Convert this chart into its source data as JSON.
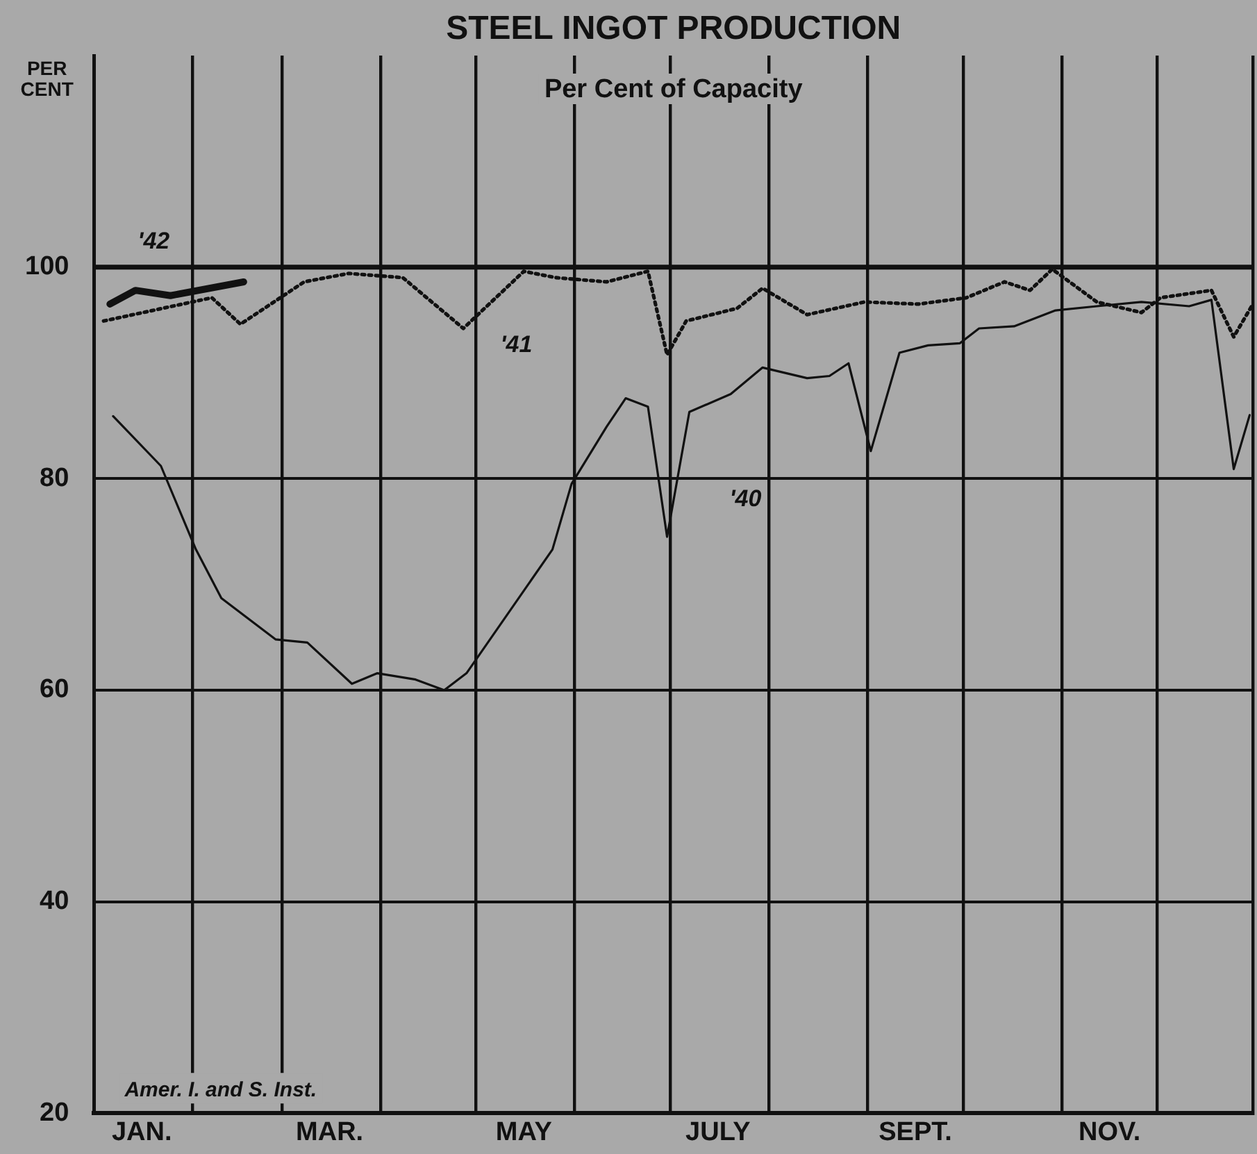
{
  "chart_data": {
    "type": "line",
    "title": "STEEL INGOT PRODUCTION",
    "subtitle": "Per Cent of Capacity",
    "ylabel": "PER CENT",
    "annotations": [
      "Amer. I. and S. Inst."
    ],
    "xlim": [
      "--01-01",
      "--12-31"
    ],
    "ylim": [
      20,
      120
    ],
    "xticks": [
      {
        "value": "--01-01",
        "label": null
      },
      {
        "value": "--01-16",
        "label": "JAN."
      },
      {
        "value": "--02-01",
        "label": null
      },
      {
        "value": "--03-01",
        "label": null
      },
      {
        "value": "--03-16",
        "label": "MAR."
      },
      {
        "value": "--04-01",
        "label": null
      },
      {
        "value": "--05-01",
        "label": null
      },
      {
        "value": "--05-16",
        "label": "MAY"
      },
      {
        "value": "--06-01",
        "label": null
      },
      {
        "value": "--07-01",
        "label": null
      },
      {
        "value": "--07-16",
        "label": "JULY"
      },
      {
        "value": "--08-01",
        "label": null
      },
      {
        "value": "--09-01",
        "label": null
      },
      {
        "value": "--09-16",
        "label": "SEPT."
      },
      {
        "value": "--10-01",
        "label": null
      },
      {
        "value": "--11-01",
        "label": null
      },
      {
        "value": "--11-16",
        "label": "NOV."
      },
      {
        "value": "--12-01",
        "label": null
      },
      {
        "value": "--12-31",
        "label": null
      }
    ],
    "yticks": [
      20,
      40,
      60,
      80,
      100
    ],
    "grid": true,
    "legend": false,
    "marker": "none",
    "ref_lines": [
      {
        "axis": "y",
        "value": 100,
        "color": "#111111"
      }
    ],
    "series": [
      {
        "name": "'40",
        "color": "#111111",
        "line_style": "solid",
        "x": [
          "--01-07",
          "--01-22",
          "--02-02",
          "--02-10",
          "--02-27",
          "--03-09",
          "--03-23",
          "--03-31",
          "--04-12",
          "--04-21",
          "--04-28",
          "--05-25",
          "--05-31",
          "--06-11",
          "--06-17",
          "--06-24",
          "--06-30",
          "--07-07",
          "--07-20",
          "--07-30",
          "--08-13",
          "--08-20",
          "--08-26",
          "--09-02",
          "--09-11",
          "--09-20",
          "--09-30",
          "--10-06",
          "--10-17",
          "--10-30",
          "--11-12",
          "--11-26",
          "--12-11",
          "--12-18",
          "--12-25",
          "--12-30"
        ],
        "values": [
          85.9,
          81.2,
          73.3,
          68.7,
          64.8,
          64.5,
          60.6,
          61.6,
          61.0,
          60.0,
          61.6,
          73.3,
          79.5,
          84.9,
          87.6,
          86.8,
          74.5,
          86.3,
          88.0,
          90.5,
          89.5,
          89.7,
          90.9,
          82.6,
          91.9,
          92.6,
          92.8,
          94.2,
          94.4,
          95.9,
          96.3,
          96.7,
          96.3,
          96.9,
          80.9,
          86
        ]
      },
      {
        "name": "'41",
        "color": "#111111",
        "line_style": "dotted",
        "x": [
          "--01-04",
          "--02-07",
          "--02-16",
          "--03-08",
          "--03-22",
          "--04-08",
          "--04-27",
          "--05-16",
          "--05-26",
          "--06-11",
          "--06-24",
          "--06-30",
          "--07-06",
          "--07-22",
          "--07-30",
          "--08-13",
          "--08-31",
          "--09-17",
          "--10-02",
          "--10-14",
          "--10-22",
          "--10-29",
          "--11-12",
          "--11-26",
          "--12-02",
          "--12-18",
          "--12-25",
          "--12-31"
        ],
        "values": [
          94.9,
          97.1,
          94.6,
          98.6,
          99.4,
          99.0,
          94.2,
          99.6,
          99.0,
          98.6,
          99.6,
          91.7,
          94.9,
          96.1,
          98.0,
          95.5,
          96.7,
          96.5,
          97.1,
          98.6,
          97.8,
          99.8,
          96.7,
          95.7,
          97.1,
          97.8,
          93.4,
          96.5
        ]
      },
      {
        "name": "'42",
        "color": "#111111",
        "line_style": "solid",
        "x": [
          "--01-06",
          "--01-14",
          "--01-25",
          "--02-17"
        ],
        "values": [
          96.5,
          97.8,
          97.3,
          98.6
        ]
      }
    ]
  }
}
